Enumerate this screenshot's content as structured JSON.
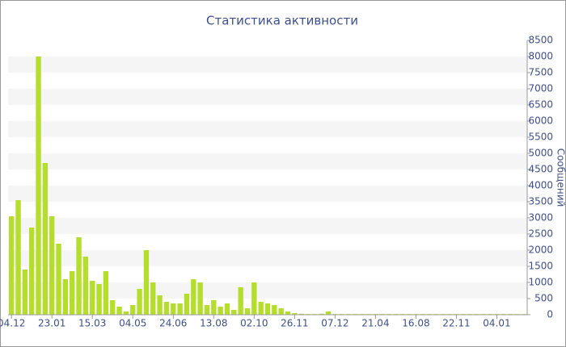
{
  "chart_data": {
    "type": "bar",
    "title": "Статистика активности",
    "y_label": "Сообщений",
    "color": "#b5dd2b",
    "categories": [
      "04.12",
      null,
      null,
      null,
      null,
      null,
      "23.01",
      null,
      null,
      null,
      null,
      null,
      "15.03",
      null,
      null,
      null,
      null,
      null,
      "04.05",
      null,
      null,
      null,
      null,
      null,
      "24.06",
      null,
      null,
      null,
      null,
      null,
      "13.08",
      null,
      null,
      null,
      null,
      null,
      "02.10",
      null,
      null,
      null,
      null,
      null,
      "26.11",
      null,
      null,
      null,
      null,
      null,
      "07.12",
      null,
      null,
      null,
      null,
      null,
      "21.04",
      null,
      null,
      null,
      null,
      null,
      "16.08",
      null,
      null,
      null,
      null,
      null,
      "22.11",
      null,
      null,
      null,
      null,
      null,
      "04.01",
      null,
      null,
      null,
      null
    ],
    "values": [
      3050,
      3550,
      1400,
      2700,
      8000,
      4700,
      3050,
      2200,
      1100,
      1350,
      2400,
      1800,
      1050,
      950,
      1350,
      450,
      250,
      100,
      300,
      800,
      2000,
      1000,
      600,
      400,
      350,
      350,
      650,
      1100,
      1000,
      300,
      450,
      250,
      350,
      150,
      850,
      200,
      1000,
      400,
      350,
      300,
      200,
      100,
      50,
      30,
      20,
      20,
      30,
      100,
      20,
      20,
      20,
      20,
      20,
      20,
      20,
      20,
      20,
      20,
      20,
      20,
      20,
      20,
      20,
      20,
      20,
      20,
      20,
      20,
      20,
      20,
      20,
      20,
      20,
      20,
      20,
      20,
      20
    ],
    "ylim": [
      0,
      8500
    ],
    "yticks": [
      0,
      500,
      1000,
      1500,
      2000,
      2500,
      3000,
      3500,
      4000,
      4500,
      5000,
      5500,
      6000,
      6500,
      7000,
      7500,
      8000,
      8500
    ],
    "grid": true
  }
}
